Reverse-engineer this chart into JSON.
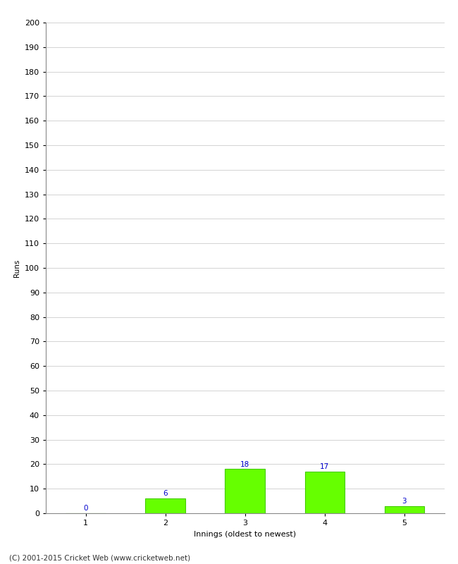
{
  "categories": [
    1,
    2,
    3,
    4,
    5
  ],
  "values": [
    0,
    6,
    18,
    17,
    3
  ],
  "bar_color": "#66ff00",
  "bar_edge_color": "#44cc00",
  "value_label_color": "#0000cc",
  "xlabel": "Innings (oldest to newest)",
  "ylabel": "Runs",
  "ylim": [
    0,
    200
  ],
  "yticks": [
    0,
    10,
    20,
    30,
    40,
    50,
    60,
    70,
    80,
    90,
    100,
    110,
    120,
    130,
    140,
    150,
    160,
    170,
    180,
    190,
    200
  ],
  "footer": "(C) 2001-2015 Cricket Web (www.cricketweb.net)",
  "background_color": "#ffffff",
  "grid_color": "#cccccc",
  "value_fontsize": 7.5,
  "axis_label_fontsize": 8,
  "tick_fontsize": 8,
  "footer_fontsize": 7.5,
  "ylabel_fontsize": 7.5
}
